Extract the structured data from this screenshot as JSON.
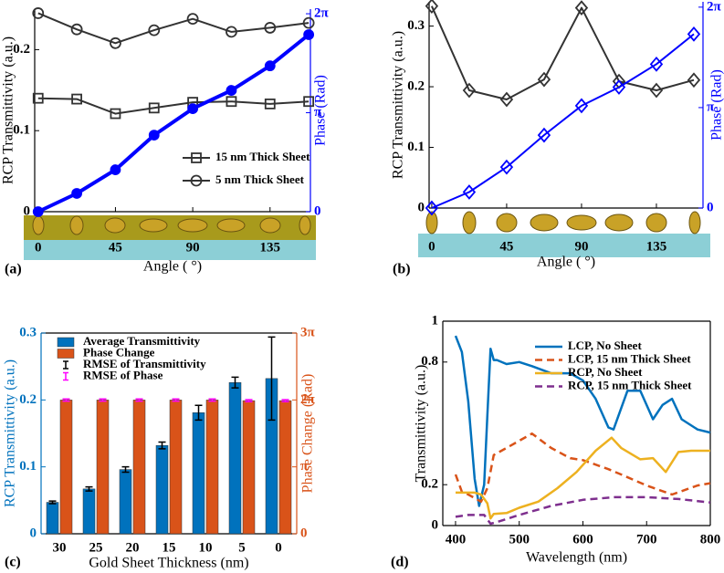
{
  "chart_data": [
    {
      "type": "line",
      "label": "(a)",
      "xlabel": "Angle ( °)",
      "ylabel": "RCP Transmittivity (a.u.)",
      "y2label": "Phase (Rad)",
      "y2color": "#0000ff",
      "x": [
        0,
        22.5,
        45,
        67.5,
        90,
        112.5,
        135,
        157.5
      ],
      "xlim": [
        -2,
        158.5
      ],
      "xticks": [
        0,
        45,
        90,
        135
      ],
      "ylim": [
        0,
        0.25
      ],
      "yticks": [
        0,
        0.1,
        0.2
      ],
      "y2lim": [
        0,
        6.43
      ],
      "y2ticks": [
        0,
        {
          "value": 3.1416,
          "label": "π"
        },
        {
          "value": 6.2832,
          "label": "2π"
        }
      ],
      "legend": "center right",
      "series": [
        {
          "name": "15 nm Thick Sheet",
          "color": "#333333",
          "marker": "square",
          "values": [
            0.14,
            0.139,
            0.121,
            0.128,
            0.135,
            0.136,
            0.133,
            0.136
          ]
        },
        {
          "name": "5 nm Thick Sheet",
          "color": "#333333",
          "marker": "circle",
          "values": [
            0.245,
            0.225,
            0.208,
            0.224,
            0.238,
            0.222,
            0.227,
            0.233
          ]
        },
        {
          "color": "#0000ff",
          "marker": "dot",
          "axis": "y2",
          "width": 4,
          "values": [
            0,
            0.58,
            1.33,
            2.43,
            3.27,
            3.85,
            4.63,
            5.62
          ]
        }
      ]
    },
    {
      "type": "line",
      "label": "(b)",
      "xlabel": "Angle ( °)",
      "ylabel": "RCP Transmittivity (a.u.)",
      "y2label": "Phase (Rad)",
      "y2color": "#0000ff",
      "x": [
        0,
        22.5,
        45,
        67.5,
        90,
        112.5,
        135,
        157.5
      ],
      "xlim": [
        -1.6,
        163
      ],
      "xticks": [
        0,
        45,
        90,
        135
      ],
      "ylim": [
        0,
        0.34
      ],
      "yticks": [
        0,
        0.1,
        0.2,
        0.3
      ],
      "y2lim": [
        0,
        6.45
      ],
      "y2ticks": [
        0,
        {
          "value": 3.1416,
          "label": "π"
        },
        {
          "value": 6.2832,
          "label": "2π"
        }
      ],
      "series": [
        {
          "color": "#333333",
          "marker": "diamond",
          "values": [
            0.333,
            0.194,
            0.179,
            0.212,
            0.33,
            0.209,
            0.194,
            0.211
          ]
        },
        {
          "color": "#0000ff",
          "marker": "diamond",
          "axis": "y2",
          "width": 2,
          "values": [
            0,
            0.5,
            1.28,
            2.28,
            3.2,
            3.78,
            4.5,
            5.44
          ]
        }
      ]
    },
    {
      "type": "bar",
      "label": "(c)",
      "xlabel": "Gold Sheet Thickness (nm)",
      "ylabel": "RCP Transmittivity (a.u.)",
      "y2label": "Phase Change (Rad)",
      "ycolor": "#0072bd",
      "y2color": "#d95319",
      "categories": [
        "30",
        "25",
        "20",
        "15",
        "10",
        "5",
        "0"
      ],
      "ylim": [
        0,
        0.3
      ],
      "yticks": [
        0,
        0.1,
        0.2,
        0.3
      ],
      "y2lim": [
        0,
        9.4248
      ],
      "y2ticks": [
        0,
        {
          "value": 3.1416,
          "label": "π"
        },
        {
          "value": 6.2832,
          "label": "2π"
        },
        {
          "value": 9.4248,
          "label": "3π"
        }
      ],
      "legend": "upper left",
      "series": [
        {
          "name": "Average Transmittivity",
          "color": "#0072bd",
          "values": [
            0.047,
            0.067,
            0.096,
            0.132,
            0.181,
            0.226,
            0.232
          ],
          "errors": [
            0.002,
            0.003,
            0.004,
            0.005,
            0.011,
            0.008,
            0.062
          ],
          "error_name": "RMSE of Transmittivity",
          "error_color": "#000000"
        },
        {
          "name": "Phase Change",
          "color": "#d95319",
          "axis": "y2",
          "values": [
            6.28,
            6.28,
            6.28,
            6.28,
            6.28,
            6.25,
            6.25
          ],
          "errors": [
            0.05,
            0.05,
            0.05,
            0.05,
            0.05,
            0.05,
            0.05
          ],
          "error_name": "RMSE of Phase",
          "error_color": "#ff00ff"
        }
      ]
    },
    {
      "type": "line",
      "label": "(d)",
      "xlabel": "Wavelength (nm)",
      "ylabel": "Transmittivity (a.u.)",
      "xlim": [
        380,
        800
      ],
      "xticks": [
        400,
        500,
        600,
        700,
        800
      ],
      "ylim": [
        0,
        1
      ],
      "yticks": [
        0,
        0.2,
        0.8,
        1
      ],
      "legend": "upper right",
      "series": [
        {
          "name": "LCP, No Sheet",
          "color": "#0072bd",
          "width": 2.5,
          "x": [
            400,
            410,
            420,
            430,
            437,
            445,
            450,
            455,
            460,
            465,
            480,
            500,
            520,
            550,
            580,
            600,
            620,
            640,
            648,
            670,
            690,
            710,
            725,
            740,
            755,
            780,
            800
          ],
          "values": [
            0.928,
            0.849,
            0.607,
            0.228,
            0.096,
            0.2,
            0.538,
            0.865,
            0.81,
            0.81,
            0.79,
            0.8,
            0.78,
            0.745,
            0.745,
            0.71,
            0.62,
            0.48,
            0.47,
            0.66,
            0.66,
            0.52,
            0.59,
            0.62,
            0.52,
            0.47,
            0.455
          ]
        },
        {
          "name": "LCP, 15 nm Thick Sheet",
          "color": "#d95319",
          "dash": true,
          "width": 2.5,
          "x": [
            400,
            410,
            420,
            440,
            450,
            460,
            480,
            520,
            550,
            580,
            600,
            640,
            660,
            700,
            740,
            780,
            800
          ],
          "values": [
            0.25,
            0.165,
            0.152,
            0.117,
            0.183,
            0.345,
            0.38,
            0.45,
            0.38,
            0.33,
            0.32,
            0.276,
            0.25,
            0.196,
            0.152,
            0.196,
            0.207
          ]
        },
        {
          "name": "RCP, No Sheet",
          "color": "#edb120",
          "width": 2.5,
          "x": [
            400,
            430,
            440,
            450,
            455,
            460,
            480,
            500,
            530,
            560,
            590,
            620,
            645,
            660,
            690,
            710,
            730,
            750,
            770,
            800
          ],
          "values": [
            0.161,
            0.161,
            0.152,
            0.109,
            0.035,
            0.057,
            0.061,
            0.087,
            0.117,
            0.183,
            0.262,
            0.366,
            0.43,
            0.38,
            0.324,
            0.33,
            0.262,
            0.36,
            0.366,
            0.366
          ]
        },
        {
          "name": "RCP, 15 nm Thick Sheet",
          "color": "#7e2f8e",
          "dash": true,
          "width": 2.5,
          "x": [
            400,
            420,
            445,
            455,
            470,
            500,
            550,
            600,
            650,
            700,
            750,
            800
          ],
          "values": [
            0.043,
            0.052,
            0.052,
            0.009,
            0.022,
            0.052,
            0.096,
            0.126,
            0.139,
            0.139,
            0.13,
            0.113
          ]
        }
      ]
    }
  ]
}
